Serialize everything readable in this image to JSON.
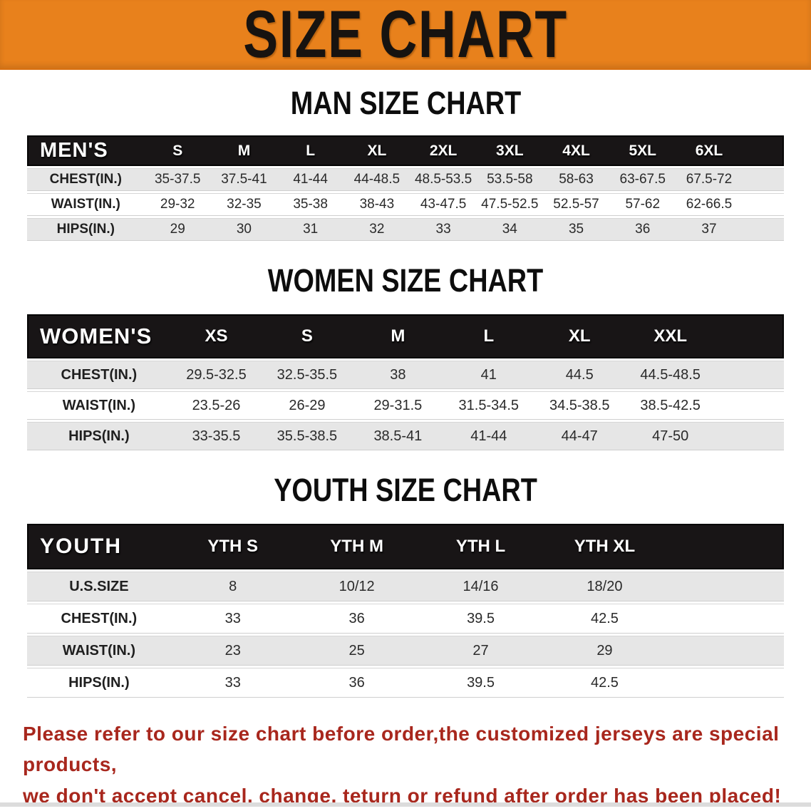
{
  "banner": {
    "title": "SIZE CHART"
  },
  "colors": {
    "banner_bg": "#e8811c",
    "table_header_bg": "#181516",
    "row_alt_gray": "#e6e6e6",
    "disclaimer_red": "#a8271d"
  },
  "sections": [
    {
      "id": "men",
      "heading": "MAN SIZE CHART",
      "table": {
        "corner": "MEN'S",
        "columns": [
          "S",
          "M",
          "L",
          "XL",
          "2XL",
          "3XL",
          "4XL",
          "5XL",
          "6XL"
        ],
        "rows": [
          {
            "label": "CHEST(IN.)",
            "values": [
              "35-37.5",
              "37.5-41",
              "41-44",
              "44-48.5",
              "48.5-53.5",
              "53.5-58",
              "58-63",
              "63-67.5",
              "67.5-72"
            ]
          },
          {
            "label": "WAIST(IN.)",
            "values": [
              "29-32",
              "32-35",
              "35-38",
              "38-43",
              "43-47.5",
              "47.5-52.5",
              "52.5-57",
              "57-62",
              "62-66.5"
            ]
          },
          {
            "label": "HIPS(IN.)",
            "values": [
              "29",
              "30",
              "31",
              "32",
              "33",
              "34",
              "35",
              "36",
              "37"
            ]
          }
        ]
      }
    },
    {
      "id": "women",
      "heading": "WOMEN SIZE CHART",
      "table": {
        "corner": "WOMEN'S",
        "columns": [
          "XS",
          "S",
          "M",
          "L",
          "XL",
          "XXL"
        ],
        "rows": [
          {
            "label": "CHEST(IN.)",
            "values": [
              "29.5-32.5",
              "32.5-35.5",
              "38",
              "41",
              "44.5",
              "44.5-48.5"
            ]
          },
          {
            "label": "WAIST(IN.)",
            "values": [
              "23.5-26",
              "26-29",
              "29-31.5",
              "31.5-34.5",
              "34.5-38.5",
              "38.5-42.5"
            ]
          },
          {
            "label": "HIPS(IN.)",
            "values": [
              "33-35.5",
              "35.5-38.5",
              "38.5-41",
              "41-44",
              "44-47",
              "47-50"
            ]
          }
        ]
      }
    },
    {
      "id": "youth",
      "heading": "YOUTH SIZE CHART",
      "table": {
        "corner": "YOUTH",
        "columns": [
          "YTH S",
          "YTH M",
          "YTH L",
          "YTH XL"
        ],
        "rows": [
          {
            "label": "U.S.SIZE",
            "values": [
              "8",
              "10/12",
              "14/16",
              "18/20"
            ]
          },
          {
            "label": "CHEST(IN.)",
            "values": [
              "33",
              "36",
              "39.5",
              "42.5"
            ]
          },
          {
            "label": "WAIST(IN.)",
            "values": [
              "23",
              "25",
              "27",
              "29"
            ]
          },
          {
            "label": "HIPS(IN.)",
            "values": [
              "33",
              "36",
              "39.5",
              "42.5"
            ]
          }
        ]
      }
    }
  ],
  "disclaimer": {
    "line1": "Please refer to our size chart before order,the customized jerseys are special products,",
    "line2": "we don't accept cancel, change, teturn or refund after order has been placed!"
  }
}
